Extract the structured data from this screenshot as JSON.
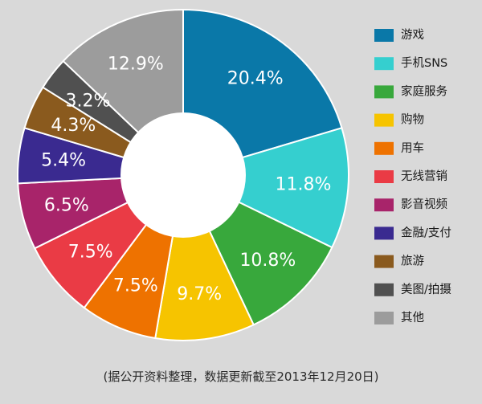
{
  "chart_data": {
    "type": "pie",
    "donut": true,
    "legend_position": "right",
    "categories": [
      "游戏",
      "手机SNS",
      "家庭服务",
      "购物",
      "用车",
      "无线营销",
      "影音视频",
      "金融/支付",
      "旅游",
      "美图/拍摄",
      "其他"
    ],
    "values": [
      20.4,
      11.8,
      10.8,
      9.7,
      7.5,
      7.5,
      6.5,
      5.4,
      4.3,
      3.2,
      12.9
    ],
    "value_labels": [
      "20.4%",
      "11.8%",
      "10.8%",
      "9.7%",
      "7.5%",
      "7.5%",
      "6.5%",
      "5.4%",
      "4.3%",
      "3.2%",
      "12.9%"
    ],
    "colors": [
      "#0a78a8",
      "#35cfcf",
      "#38a83c",
      "#f6c400",
      "#ee7200",
      "#ea3b45",
      "#a8246a",
      "#3a2a90",
      "#8a5a1e",
      "#505050",
      "#9c9c9c"
    ]
  },
  "footnote": "(据公开资料整理，数据更新截至2013年12月20日)"
}
